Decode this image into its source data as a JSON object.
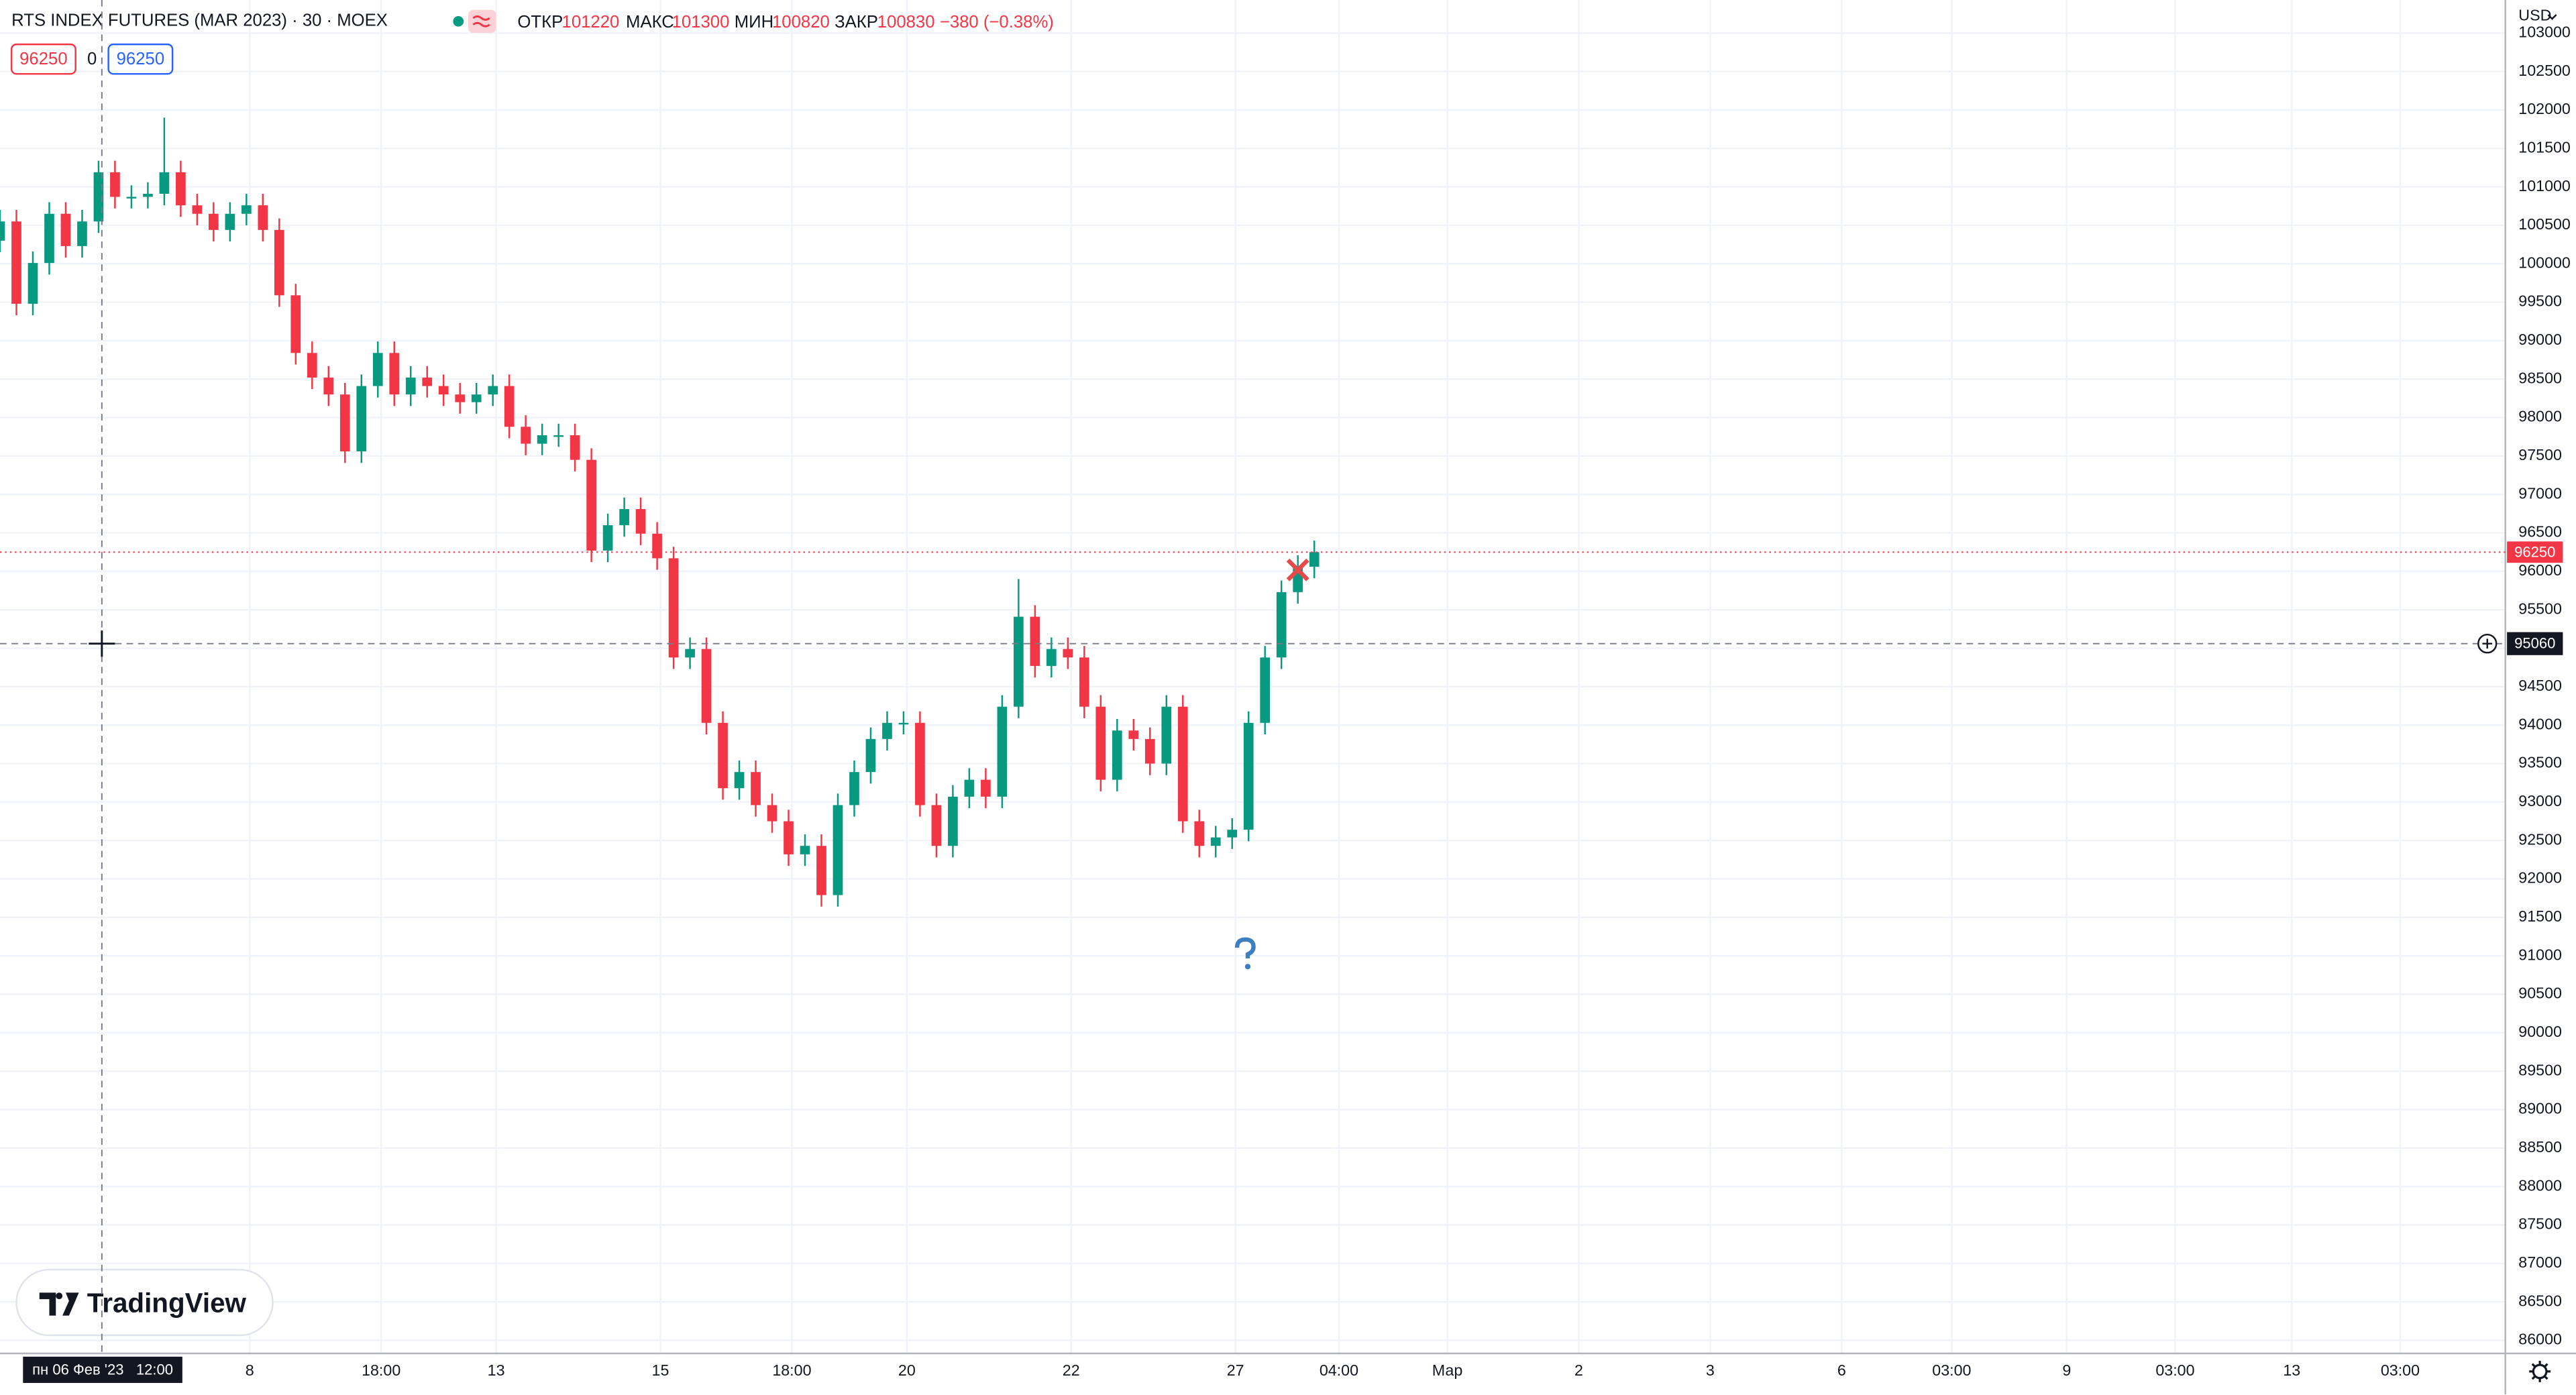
{
  "header": {
    "title": "RTS INDEX FUTURES (MAR 2023) · 30 · MOEX",
    "open_label": "ОТКР",
    "open": 101220,
    "high_label": "МАКС",
    "high": 101300,
    "low_label": "МИН",
    "low": 100820,
    "close_label": "ЗАКР",
    "close": 100830,
    "change": "−380 (−0.38%)",
    "spread": 0
  },
  "logo": "TradingView",
  "currency": "USD",
  "chart_data": {
    "type": "candlestick",
    "up_color": "#089981",
    "down_color": "#f23645",
    "xlim": [
      0,
      152.5
    ],
    "xticks": [
      {
        "value": 15.2,
        "label": "8"
      },
      {
        "value": 23.2,
        "label": "18:00"
      },
      {
        "value": 30.2,
        "label": "13"
      },
      {
        "value": 40.2,
        "label": "15"
      },
      {
        "value": 48.2,
        "label": "18:00"
      },
      {
        "value": 55.2,
        "label": "20"
      },
      {
        "value": 65.2,
        "label": "22"
      },
      {
        "value": 75.2,
        "label": "27"
      },
      {
        "value": 81.5,
        "label": "04:00"
      },
      {
        "value": 88.1,
        "label": "Мар"
      },
      {
        "value": 96.1,
        "label": "2"
      },
      {
        "value": 104.1,
        "label": "3"
      },
      {
        "value": 112.1,
        "label": "6"
      },
      {
        "value": 118.8,
        "label": "03:00"
      },
      {
        "value": 125.8,
        "label": "9"
      },
      {
        "value": 132.4,
        "label": "03:00"
      },
      {
        "value": 139.5,
        "label": "13"
      },
      {
        "value": 146.1,
        "label": "03:00"
      }
    ],
    "ylim": [
      85830,
      103430
    ],
    "yticks": [
      86000,
      86500,
      87000,
      87500,
      88000,
      88500,
      89000,
      89500,
      90000,
      90500,
      91000,
      91500,
      92000,
      92500,
      93000,
      93500,
      94000,
      94500,
      95000,
      95500,
      96000,
      96500,
      97000,
      97500,
      98000,
      98500,
      99000,
      99500,
      100000,
      100500,
      101000,
      101500,
      102000,
      102500,
      103000
    ],
    "grid": true,
    "open": [
      100300,
      100550,
      99480,
      100010,
      100650,
      100230,
      100550,
      101190,
      100870,
      100870,
      100910,
      101190,
      100760,
      100650,
      100440,
      100650,
      100760,
      100440,
      99590,
      98840,
      98520,
      98300,
      97560,
      98410,
      98840,
      98300,
      98520,
      98410,
      98300,
      98200,
      98300,
      98410,
      97880,
      97660,
      97770,
      97770,
      97450,
      96270,
      96600,
      96810,
      96490,
      96170,
      94880,
      94990,
      94030,
      93180,
      93390,
      92960,
      92750,
      92320,
      92430,
      91790,
      92960,
      93390,
      93820,
      94030,
      94030,
      92960,
      92430,
      93070,
      93290,
      93070,
      94240,
      95410,
      94770,
      94990,
      94880,
      94240,
      93290,
      93930,
      93820,
      93500,
      94240,
      92750,
      92430,
      92540,
      92640,
      94030,
      94880,
      95730,
      96060
    ],
    "high": [
      100700,
      100700,
      100160,
      100800,
      100800,
      100700,
      101340,
      101340,
      101020,
      101060,
      101900,
      101340,
      100910,
      100800,
      100800,
      100910,
      100910,
      100590,
      99740,
      98990,
      98670,
      98450,
      98560,
      98990,
      98990,
      98670,
      98670,
      98560,
      98450,
      98450,
      98560,
      98560,
      98030,
      97920,
      97920,
      97920,
      97600,
      96750,
      96960,
      96960,
      96640,
      96320,
      95140,
      95140,
      94180,
      93540,
      93540,
      93110,
      92900,
      92580,
      92580,
      93110,
      93540,
      93970,
      94180,
      94180,
      94180,
      93110,
      93220,
      93440,
      93440,
      94390,
      95900,
      95560,
      95140,
      95140,
      95030,
      94390,
      94080,
      94080,
      93970,
      94390,
      94390,
      92900,
      92690,
      92790,
      94180,
      95030,
      95880,
      96210,
      96400
    ],
    "low": [
      100150,
      99330,
      99330,
      99860,
      100080,
      100080,
      100400,
      100720,
      100720,
      100720,
      100760,
      100610,
      100500,
      100290,
      100290,
      100500,
      100290,
      99440,
      98690,
      98370,
      98150,
      97410,
      97410,
      98260,
      98150,
      98150,
      98260,
      98150,
      98050,
      98050,
      98150,
      97730,
      97510,
      97510,
      97620,
      97300,
      96120,
      96120,
      96450,
      96340,
      96020,
      94730,
      94730,
      93880,
      93030,
      93030,
      92810,
      92600,
      92170,
      92170,
      91640,
      91640,
      92810,
      93240,
      93670,
      93880,
      92810,
      92280,
      92280,
      92920,
      92920,
      92920,
      94090,
      94620,
      94620,
      94730,
      94090,
      93140,
      93140,
      93670,
      93350,
      93350,
      92600,
      92280,
      92280,
      92390,
      92490,
      93880,
      94730,
      95580,
      95910
    ],
    "close": [
      100550,
      99480,
      100010,
      100650,
      100230,
      100550,
      101190,
      100870,
      100870,
      100910,
      101190,
      100760,
      100650,
      100440,
      100650,
      100760,
      100440,
      99590,
      98840,
      98520,
      98300,
      97560,
      98410,
      98840,
      98300,
      98520,
      98410,
      98300,
      98200,
      98300,
      98410,
      97880,
      97660,
      97770,
      97770,
      97450,
      96270,
      96600,
      96810,
      96490,
      96170,
      94880,
      94990,
      94030,
      93180,
      93390,
      92960,
      92750,
      92320,
      92430,
      91790,
      92960,
      93390,
      93820,
      94030,
      94030,
      92960,
      92430,
      93070,
      93290,
      93070,
      94240,
      95410,
      94770,
      94990,
      94880,
      94240,
      93290,
      93930,
      93820,
      93500,
      94240,
      92750,
      92430,
      92540,
      92640,
      94030,
      94880,
      95730,
      96060,
      96250
    ],
    "crosshair": {
      "x": 6.2,
      "price": 95060,
      "time": "пн 06 Фев '23   12:00"
    }
  }
}
